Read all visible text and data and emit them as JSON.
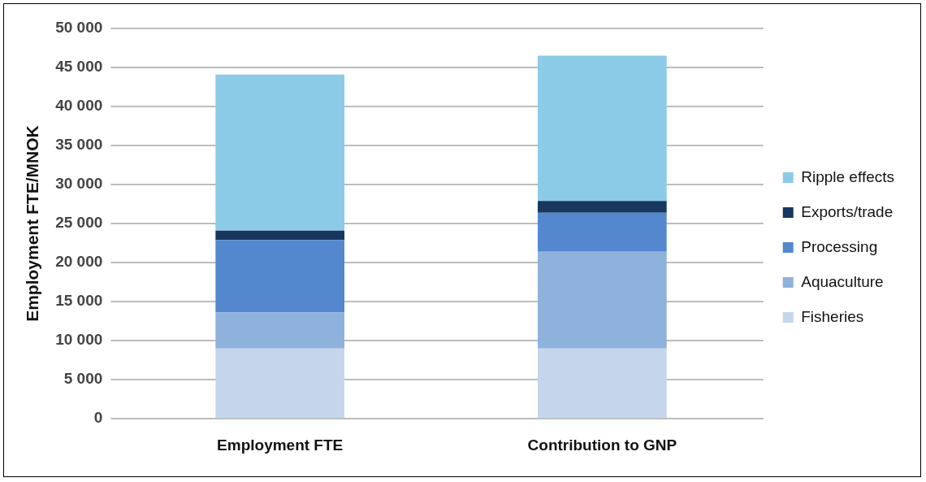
{
  "chart_data": {
    "type": "bar",
    "stacked": true,
    "ylabel": "Employment FTE/MNOK",
    "categories": [
      "Employment FTE",
      "Contribution to GNP"
    ],
    "series": [
      {
        "name": "Fisheries",
        "color": "#c5d6ec",
        "values": [
          9000,
          9000
        ]
      },
      {
        "name": "Aquaculture",
        "color": "#8fb2dc",
        "values": [
          4600,
          12400
        ]
      },
      {
        "name": "Processing",
        "color": "#5388cf",
        "values": [
          9300,
          5000
        ]
      },
      {
        "name": "Exports/trade",
        "color": "#17375e",
        "values": [
          1200,
          1500
        ]
      },
      {
        "name": "Ripple effects",
        "color": "#8ccbe8",
        "values": [
          20000,
          18600
        ]
      }
    ],
    "ylim": [
      0,
      50000
    ],
    "yticks": [
      {
        "value": 0,
        "label": "0"
      },
      {
        "value": 5000,
        "label": "5 000"
      },
      {
        "value": 10000,
        "label": "10 000"
      },
      {
        "value": 15000,
        "label": "15 000"
      },
      {
        "value": 20000,
        "label": "20 000"
      },
      {
        "value": 25000,
        "label": "25 000"
      },
      {
        "value": 30000,
        "label": "30 000"
      },
      {
        "value": 35000,
        "label": "35 000"
      },
      {
        "value": 40000,
        "label": "40 000"
      },
      {
        "value": 45000,
        "label": "45 000"
      },
      {
        "value": 50000,
        "label": "50 000"
      }
    ],
    "grid": "y",
    "legend": "right"
  }
}
